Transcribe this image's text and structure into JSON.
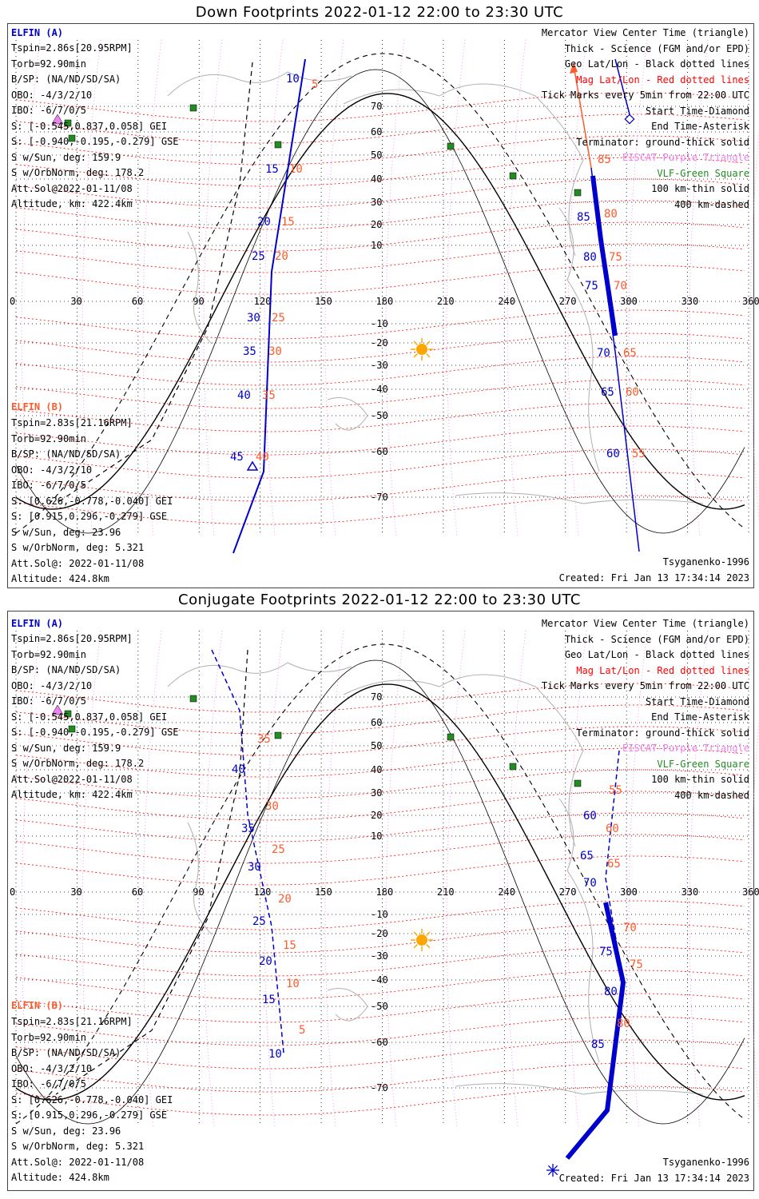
{
  "panels": [
    {
      "title": "Down Footprints 2022-01-12 22:00 to 23:30 UTC",
      "elfin_a": {
        "name": "ELFIN (A)",
        "lines": [
          "Tspin=2.86s[20.95RPM]",
          "Torb=92.90min",
          "B/SP: (NA/ND/SD/SA)",
          "OBO: -4/3/2/10",
          "IBO: -6/7/0/5",
          "S: [-0.545,0.837,0.058] GEI",
          "S: [-0.940,-0.195,-0.279] GSE",
          "S w/Sun, deg: 159.9",
          "S w/OrbNorm, deg: 178.2",
          "Att.Sol@2022-01-11/08",
          "Altitude, km: 422.4km"
        ]
      },
      "elfin_b": {
        "name": "ELFIN (B)",
        "lines": [
          "Tspin=2.83s[21.16RPM]",
          "Torb=92.90min",
          "B/SP: (NA/ND/SD/SA)",
          "OBO: -4/3/2/10",
          "IBO: -6/7/0/5",
          "S: [0.626,-0.778,-0.040] GEI",
          "S: [0.915,0.296,-0.279] GSE",
          "S w/Sun, deg: 23.96",
          "S w/OrbNorm, deg: 5.321",
          "Att.Sol@: 2022-01-11/08",
          "Altitude: 424.8km"
        ]
      },
      "footer_left": "Tsyganenko-1996",
      "created": "Created: Fri Jan 13 17:34:14 2023",
      "a_labels": [
        {
          "t": "10",
          "x": 348,
          "y": 73
        },
        {
          "t": "15",
          "x": 322,
          "y": 186
        },
        {
          "t": "20",
          "x": 312,
          "y": 252
        },
        {
          "t": "25",
          "x": 305,
          "y": 295
        },
        {
          "t": "30",
          "x": 299,
          "y": 372
        },
        {
          "t": "35",
          "x": 294,
          "y": 414
        },
        {
          "t": "40",
          "x": 287,
          "y": 469
        },
        {
          "t": "45",
          "x": 278,
          "y": 546
        }
      ],
      "b_labels": [
        {
          "t": "5",
          "x": 380,
          "y": 80
        },
        {
          "t": "10",
          "x": 352,
          "y": 186
        },
        {
          "t": "15",
          "x": 342,
          "y": 252
        },
        {
          "t": "20",
          "x": 334,
          "y": 295
        },
        {
          "t": "25",
          "x": 330,
          "y": 372
        },
        {
          "t": "30",
          "x": 326,
          "y": 414
        },
        {
          "t": "35",
          "x": 318,
          "y": 469
        },
        {
          "t": "40",
          "x": 310,
          "y": 546
        }
      ],
      "a2_labels": [
        {
          "t": "85",
          "x": 712,
          "y": 246
        },
        {
          "t": "80",
          "x": 720,
          "y": 296
        },
        {
          "t": "75",
          "x": 722,
          "y": 332
        },
        {
          "t": "70",
          "x": 737,
          "y": 416
        },
        {
          "t": "65",
          "x": 742,
          "y": 465
        },
        {
          "t": "60",
          "x": 749,
          "y": 542
        }
      ],
      "b2_labels": [
        {
          "t": "85",
          "x": 738,
          "y": 174
        },
        {
          "t": "80",
          "x": 746,
          "y": 242
        },
        {
          "t": "75",
          "x": 752,
          "y": 296
        },
        {
          "t": "70",
          "x": 758,
          "y": 332
        },
        {
          "t": "65",
          "x": 770,
          "y": 416
        },
        {
          "t": "60",
          "x": 773,
          "y": 465
        },
        {
          "t": "55",
          "x": 781,
          "y": 542
        }
      ]
    },
    {
      "title": "Conjugate Footprints 2022-01-12 22:00 to 23:30 UTC",
      "elfin_a": {
        "name": "ELFIN (A)",
        "lines": [
          "Tspin=2.86s[20.95RPM]",
          "Torb=92.90min",
          "B/SP: (NA/ND/SD/SA)",
          "OBO: -4/3/2/10",
          "IBO: -6/7/0/5",
          "S: [-0.545,0.837,0.058] GEI",
          "S: [-0.940,-0.195,-0.279] GSE",
          "S w/Sun, deg: 159.9",
          "S w/OrbNorm, deg: 178.2",
          "Att.Sol@2022-01-11/08",
          "Altitude, km: 422.4km"
        ]
      },
      "elfin_b": {
        "name": "ELFIN (B)",
        "lines": [
          "Tspin=2.83s[21.16RPM]",
          "Torb=92.90min",
          "B/SP: (NA/ND/SD/SA)",
          "OBO: -4/3/2/10",
          "IBO: -6/7/0/5",
          "S: [0.626,-0.778,-0.040] GEI",
          "S: [0.915,0.296,-0.279] GSE",
          "S w/Sun, deg: 23.96",
          "S w/OrbNorm, deg: 5.321",
          "Att.Sol@: 2022-01-11/08",
          "Altitude: 424.8km"
        ]
      },
      "footer_left": "Tsyganenko-1996",
      "created": "Created: Fri Jan 13 17:34:14 2023",
      "a_labels": [
        {
          "t": "40",
          "x": 280,
          "y": 198
        },
        {
          "t": "35",
          "x": 292,
          "y": 272
        },
        {
          "t": "30",
          "x": 300,
          "y": 320
        },
        {
          "t": "25",
          "x": 306,
          "y": 388
        },
        {
          "t": "20",
          "x": 314,
          "y": 438
        },
        {
          "t": "15",
          "x": 318,
          "y": 486
        },
        {
          "t": "10",
          "x": 326,
          "y": 554
        }
      ],
      "b_labels": [
        {
          "t": "35",
          "x": 312,
          "y": 160
        },
        {
          "t": "30",
          "x": 322,
          "y": 244
        },
        {
          "t": "25",
          "x": 330,
          "y": 298
        },
        {
          "t": "20",
          "x": 338,
          "y": 360
        },
        {
          "t": "15",
          "x": 344,
          "y": 418
        },
        {
          "t": "10",
          "x": 348,
          "y": 466
        },
        {
          "t": "5",
          "x": 364,
          "y": 524
        }
      ],
      "a2_labels": [
        {
          "t": "60",
          "x": 720,
          "y": 256
        },
        {
          "t": "65",
          "x": 716,
          "y": 306
        },
        {
          "t": "70",
          "x": 720,
          "y": 340
        },
        {
          "t": "75",
          "x": 740,
          "y": 426
        },
        {
          "t": "80",
          "x": 746,
          "y": 476
        },
        {
          "t": "85",
          "x": 730,
          "y": 542
        }
      ],
      "b2_labels": [
        {
          "t": "55",
          "x": 752,
          "y": 224
        },
        {
          "t": "60",
          "x": 748,
          "y": 272
        },
        {
          "t": "65",
          "x": 750,
          "y": 316
        },
        {
          "t": "70",
          "x": 770,
          "y": 396
        },
        {
          "t": "75",
          "x": 778,
          "y": 442
        },
        {
          "t": "80",
          "x": 762,
          "y": 516
        }
      ]
    }
  ],
  "legend": [
    {
      "text": "Mercator View Center Time (triangle)",
      "color": "#000000"
    },
    {
      "text": "Thick - Science (FGM and/or EPD)",
      "color": "#000000"
    },
    {
      "text": "Geo Lat/Lon - Black dotted lines",
      "color": "#000000"
    },
    {
      "text": "Mag Lat/Lon - Red dotted lines",
      "color": "#ff0000"
    },
    {
      "text": "Tick Marks every 5min from 22:00 UTC",
      "color": "#000000"
    },
    {
      "text": "Start Time-Diamond",
      "color": "#000000"
    },
    {
      "text": "End Time-Asterisk",
      "color": "#000000"
    },
    {
      "text": "Terminator: ground-thick solid",
      "color": "#000000"
    },
    {
      "text": "EISCAT-Purple Triangle",
      "color": "#ee82ee"
    },
    {
      "text": "VLF-Green Square",
      "color": "#228b22"
    },
    {
      "text": "100 km-thin solid",
      "color": "#000000"
    },
    {
      "text": "400 km-dashed",
      "color": "#000000"
    }
  ],
  "lon_ticks": [
    "0",
    "30",
    "60",
    "90",
    "120",
    "150",
    "180",
    "210",
    "240",
    "270",
    "300",
    "330",
    "360"
  ],
  "lat_ticks": [
    "70",
    "60",
    "50",
    "40",
    "30",
    "20",
    "10",
    "-10",
    "-20",
    "-30",
    "-40",
    "-50",
    "-60",
    "-70"
  ],
  "colors": {
    "elfin_a": "#0000cc",
    "elfin_b": "#ff5a2a",
    "mag_grid": "#ff0000",
    "geo_grid": "#000000",
    "eiscat": "#ee82ee",
    "vlf": "#228b22",
    "sun": "#ffa500"
  }
}
